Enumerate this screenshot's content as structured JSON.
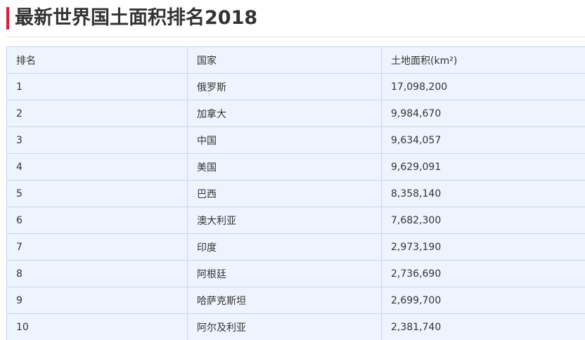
{
  "page": {
    "title": "最新世界国土面积排名2018",
    "accent_color": "#d81e3c"
  },
  "table": {
    "headers": [
      "排名",
      "国家",
      "土地面积(km²)"
    ],
    "rows": [
      [
        "1",
        "俄罗斯",
        "17,098,200"
      ],
      [
        "2",
        "加拿大",
        "9,984,670"
      ],
      [
        "3",
        "中国",
        "9,634,057"
      ],
      [
        "4",
        "美国",
        "9,629,091"
      ],
      [
        "5",
        "巴西",
        "8,358,140"
      ],
      [
        "6",
        "澳大利亚",
        "7,682,300"
      ],
      [
        "7",
        "印度",
        "2,973,190"
      ],
      [
        "8",
        "阿根廷",
        "2,736,690"
      ],
      [
        "9",
        "哈萨克斯坦",
        "2,699,700"
      ],
      [
        "10",
        "阿尔及利亚",
        "2,381,740"
      ]
    ]
  }
}
